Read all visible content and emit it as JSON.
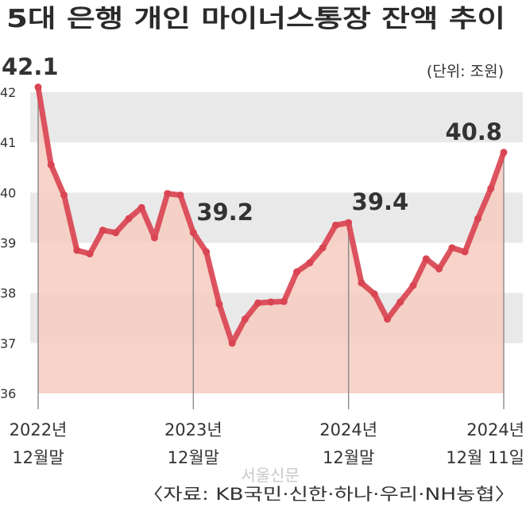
{
  "chart_data": {
    "type": "line",
    "title": "5대 은행 개인 마이너스통장 잔액 추이",
    "unit": "(단위: 조원)",
    "ylim": [
      36,
      42
    ],
    "yticks": [
      "36",
      "37",
      "38",
      "39",
      "40",
      "41",
      "42"
    ],
    "grid": "alternating horizontal bands",
    "series": [
      {
        "values": [
          42.1,
          40.55,
          39.95,
          38.85,
          38.78,
          39.25,
          39.2,
          39.48,
          39.7,
          39.1,
          39.98,
          39.95,
          39.2,
          38.82,
          37.78,
          37.0,
          37.48,
          37.8,
          37.82,
          37.83,
          38.42,
          38.6,
          38.9,
          39.35,
          39.4,
          38.2,
          37.98,
          37.48,
          37.82,
          38.15,
          38.68,
          38.48,
          38.9,
          38.82,
          39.48,
          40.08,
          40.8
        ]
      }
    ],
    "x_labels": [
      {
        "index": 0,
        "line1": "2022년",
        "line2": "12월말"
      },
      {
        "index": 12,
        "line1": "2023년",
        "line2": "12월말"
      },
      {
        "index": 24,
        "line1": "2024년",
        "line2": "12월말"
      },
      {
        "index": 36,
        "line1": "2024년",
        "line2": "12월 11일"
      }
    ],
    "annotations": [
      {
        "index": 0,
        "text": "42.1"
      },
      {
        "index": 12,
        "text": "39.2"
      },
      {
        "index": 24,
        "text": "39.4"
      },
      {
        "index": 36,
        "text": "40.8"
      }
    ],
    "colors": {
      "line": "#d94552",
      "fill": "#f6cbbf",
      "band": "#e9e9e9",
      "text": "#333333"
    }
  },
  "source": "〈자료: KB국민·신한·하나·우리·NH농협〉",
  "watermark": "서울신문"
}
